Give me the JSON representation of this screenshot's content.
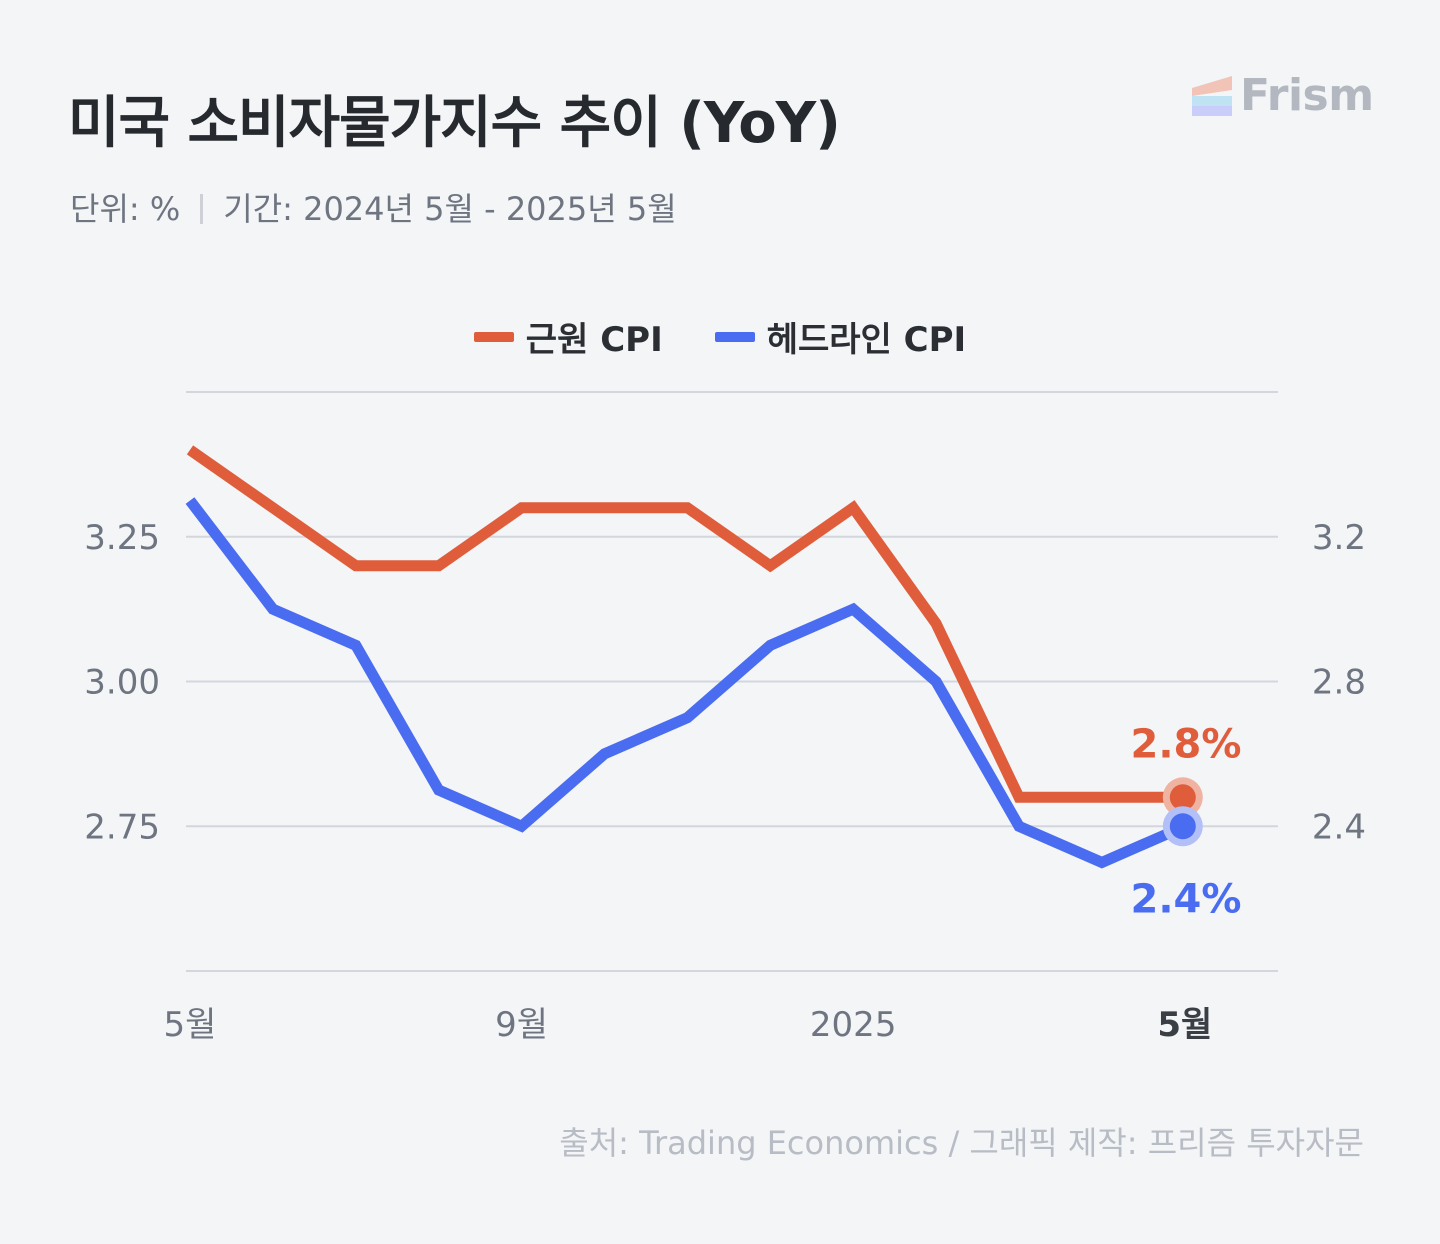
{
  "title": "미국 소비자물가지수 추이 (YoY)",
  "unit": "단위: %",
  "period": "기간: 2024년 5월 - 2025년 5월",
  "logo": "Frism",
  "source": "출처: Trading Economics / 그래픽 제작: 프리즘 투자자문",
  "colors": {
    "core": "#df5d3b",
    "headline": "#4a6cf0",
    "grid": "#d3d7dd",
    "background": "#f3f5f7"
  },
  "chart_data": {
    "type": "line",
    "x": [
      "2024-05",
      "2024-06",
      "2024-07",
      "2024-08",
      "2024-09",
      "2024-10",
      "2024-11",
      "2024-12",
      "2025-01",
      "2025-02",
      "2025-03",
      "2025-04",
      "2025-05"
    ],
    "x_tick_labels": [
      {
        "label": "5월",
        "index": 0,
        "bold": false
      },
      {
        "label": "9월",
        "index": 4,
        "bold": false
      },
      {
        "label": "2025",
        "index": 8,
        "bold": false
      },
      {
        "label": "5월",
        "index": 12,
        "bold": true
      }
    ],
    "series": [
      {
        "name": "근원 CPI",
        "axis": "left",
        "values": [
          3.4,
          3.3,
          3.2,
          3.2,
          3.3,
          3.3,
          3.3,
          3.2,
          3.3,
          3.1,
          2.8,
          2.8,
          2.8
        ],
        "end_label": "2.8%"
      },
      {
        "name": "헤드라인 CPI",
        "axis": "right",
        "values": [
          3.3,
          3.0,
          2.9,
          2.5,
          2.4,
          2.6,
          2.7,
          2.9,
          3.0,
          2.8,
          2.4,
          2.3,
          2.4
        ],
        "end_label": "2.4%"
      }
    ],
    "left_axis": {
      "ticks": [
        "3.25",
        "3.00",
        "2.75"
      ],
      "tick_values": [
        3.25,
        3.0,
        2.75
      ],
      "range": [
        2.5,
        3.5
      ]
    },
    "right_axis": {
      "ticks": [
        "3.2",
        "2.8",
        "2.4"
      ],
      "tick_values": [
        3.2,
        2.8,
        2.4
      ],
      "range": [
        2.0,
        3.6
      ]
    },
    "grid": true,
    "legend_position": "top-center"
  }
}
